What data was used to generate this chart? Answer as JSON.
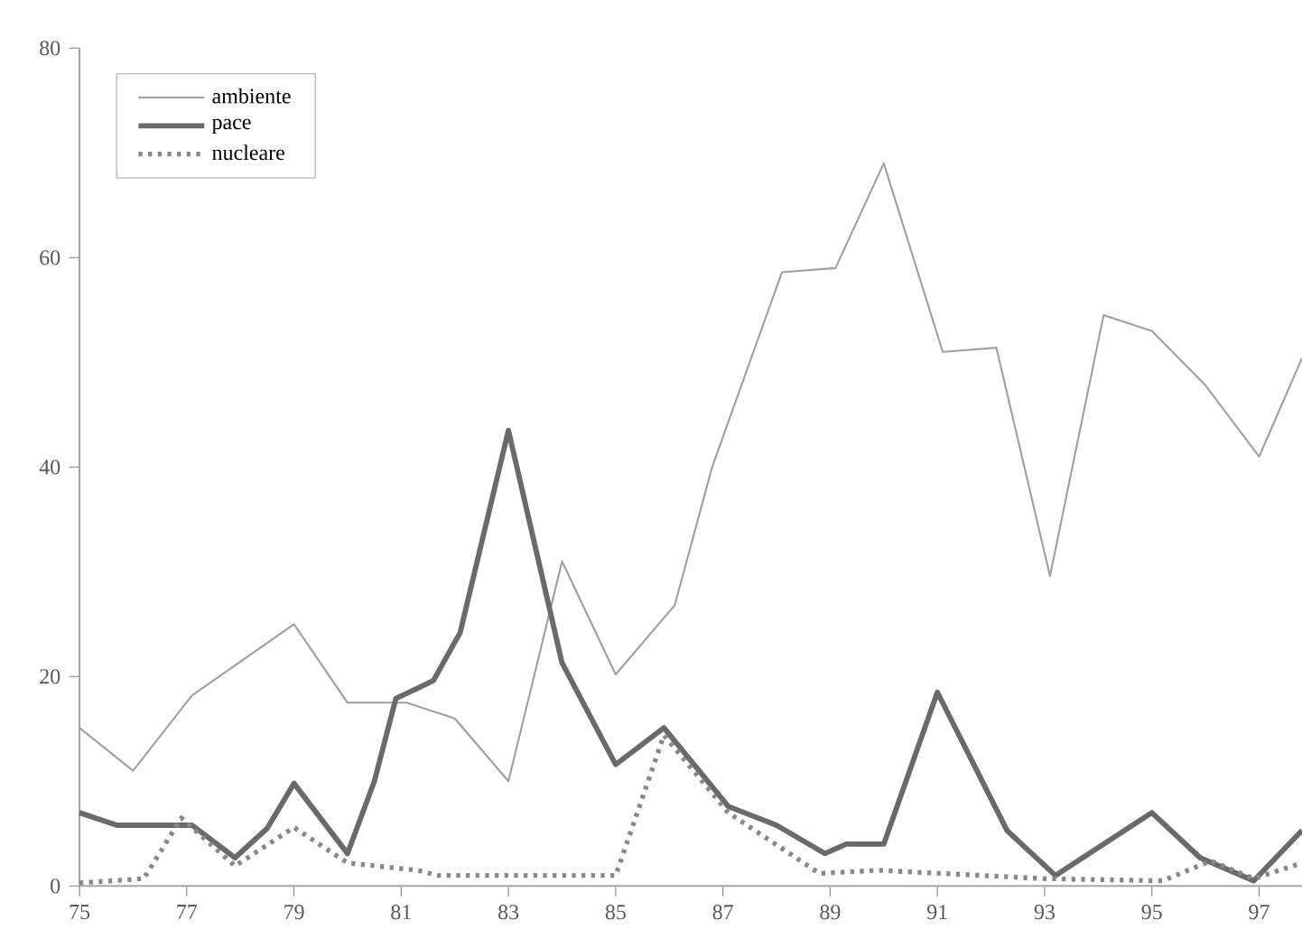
{
  "chart_data": {
    "type": "line",
    "xlim": [
      75,
      97.8
    ],
    "ylim": [
      0,
      80
    ],
    "xticks": [
      75,
      77,
      79,
      81,
      83,
      85,
      87,
      89,
      91,
      93,
      95,
      97
    ],
    "yticks": [
      0,
      20,
      40,
      60,
      80
    ],
    "legend": "top left",
    "marker": "none",
    "grid": false,
    "series": [
      {
        "name": "ambiente",
        "color": "#a0a0a0",
        "line_style": "solid",
        "x": [
          75,
          76,
          77.1,
          79,
          80,
          81.1,
          82,
          83,
          84,
          85,
          86.1,
          86.8,
          88.1,
          89.1,
          90,
          91.1,
          92.1,
          93.1,
          94.1,
          95,
          96,
          97,
          97.8
        ],
        "values": [
          15.1,
          11,
          18.2,
          25,
          17.5,
          17.5,
          16,
          10,
          31,
          20.2,
          26.8,
          40,
          58.6,
          59,
          69,
          51,
          51.4,
          29.6,
          54.5,
          53,
          47.8,
          41,
          50.4
        ]
      },
      {
        "name": "pace",
        "color": "#6a6a6a",
        "line_style": "solid",
        "x": [
          75,
          75.7,
          77.1,
          77.9,
          78.5,
          79,
          80,
          80.5,
          80.9,
          81.6,
          82.1,
          83,
          84,
          85,
          85.9,
          87.1,
          88,
          88.9,
          89.3,
          90,
          91,
          92.3,
          93.2,
          95,
          95.9,
          96.9,
          97.8
        ],
        "values": [
          7,
          5.8,
          5.8,
          2.7,
          5.5,
          9.8,
          3.1,
          10,
          17.9,
          19.6,
          24.2,
          43.5,
          21.3,
          11.6,
          15.1,
          7.6,
          5.8,
          3.1,
          4,
          4,
          18.5,
          5.3,
          1,
          7,
          2.7,
          0.5,
          5.3
        ]
      },
      {
        "name": "nucleare",
        "color": "#888888",
        "line_style": "dotted",
        "x": [
          75,
          76.2,
          76.9,
          77.9,
          79,
          80,
          81.3,
          81.7,
          85,
          85.9,
          87.1,
          88.8,
          89.9,
          93,
          95.2,
          96.1,
          96.9,
          97.8
        ],
        "values": [
          0.3,
          0.7,
          6.5,
          1.9,
          5.6,
          2.2,
          1.5,
          1,
          1,
          14.4,
          7,
          1.2,
          1.5,
          0.7,
          0.5,
          2.4,
          0.7,
          2.2
        ]
      }
    ]
  }
}
